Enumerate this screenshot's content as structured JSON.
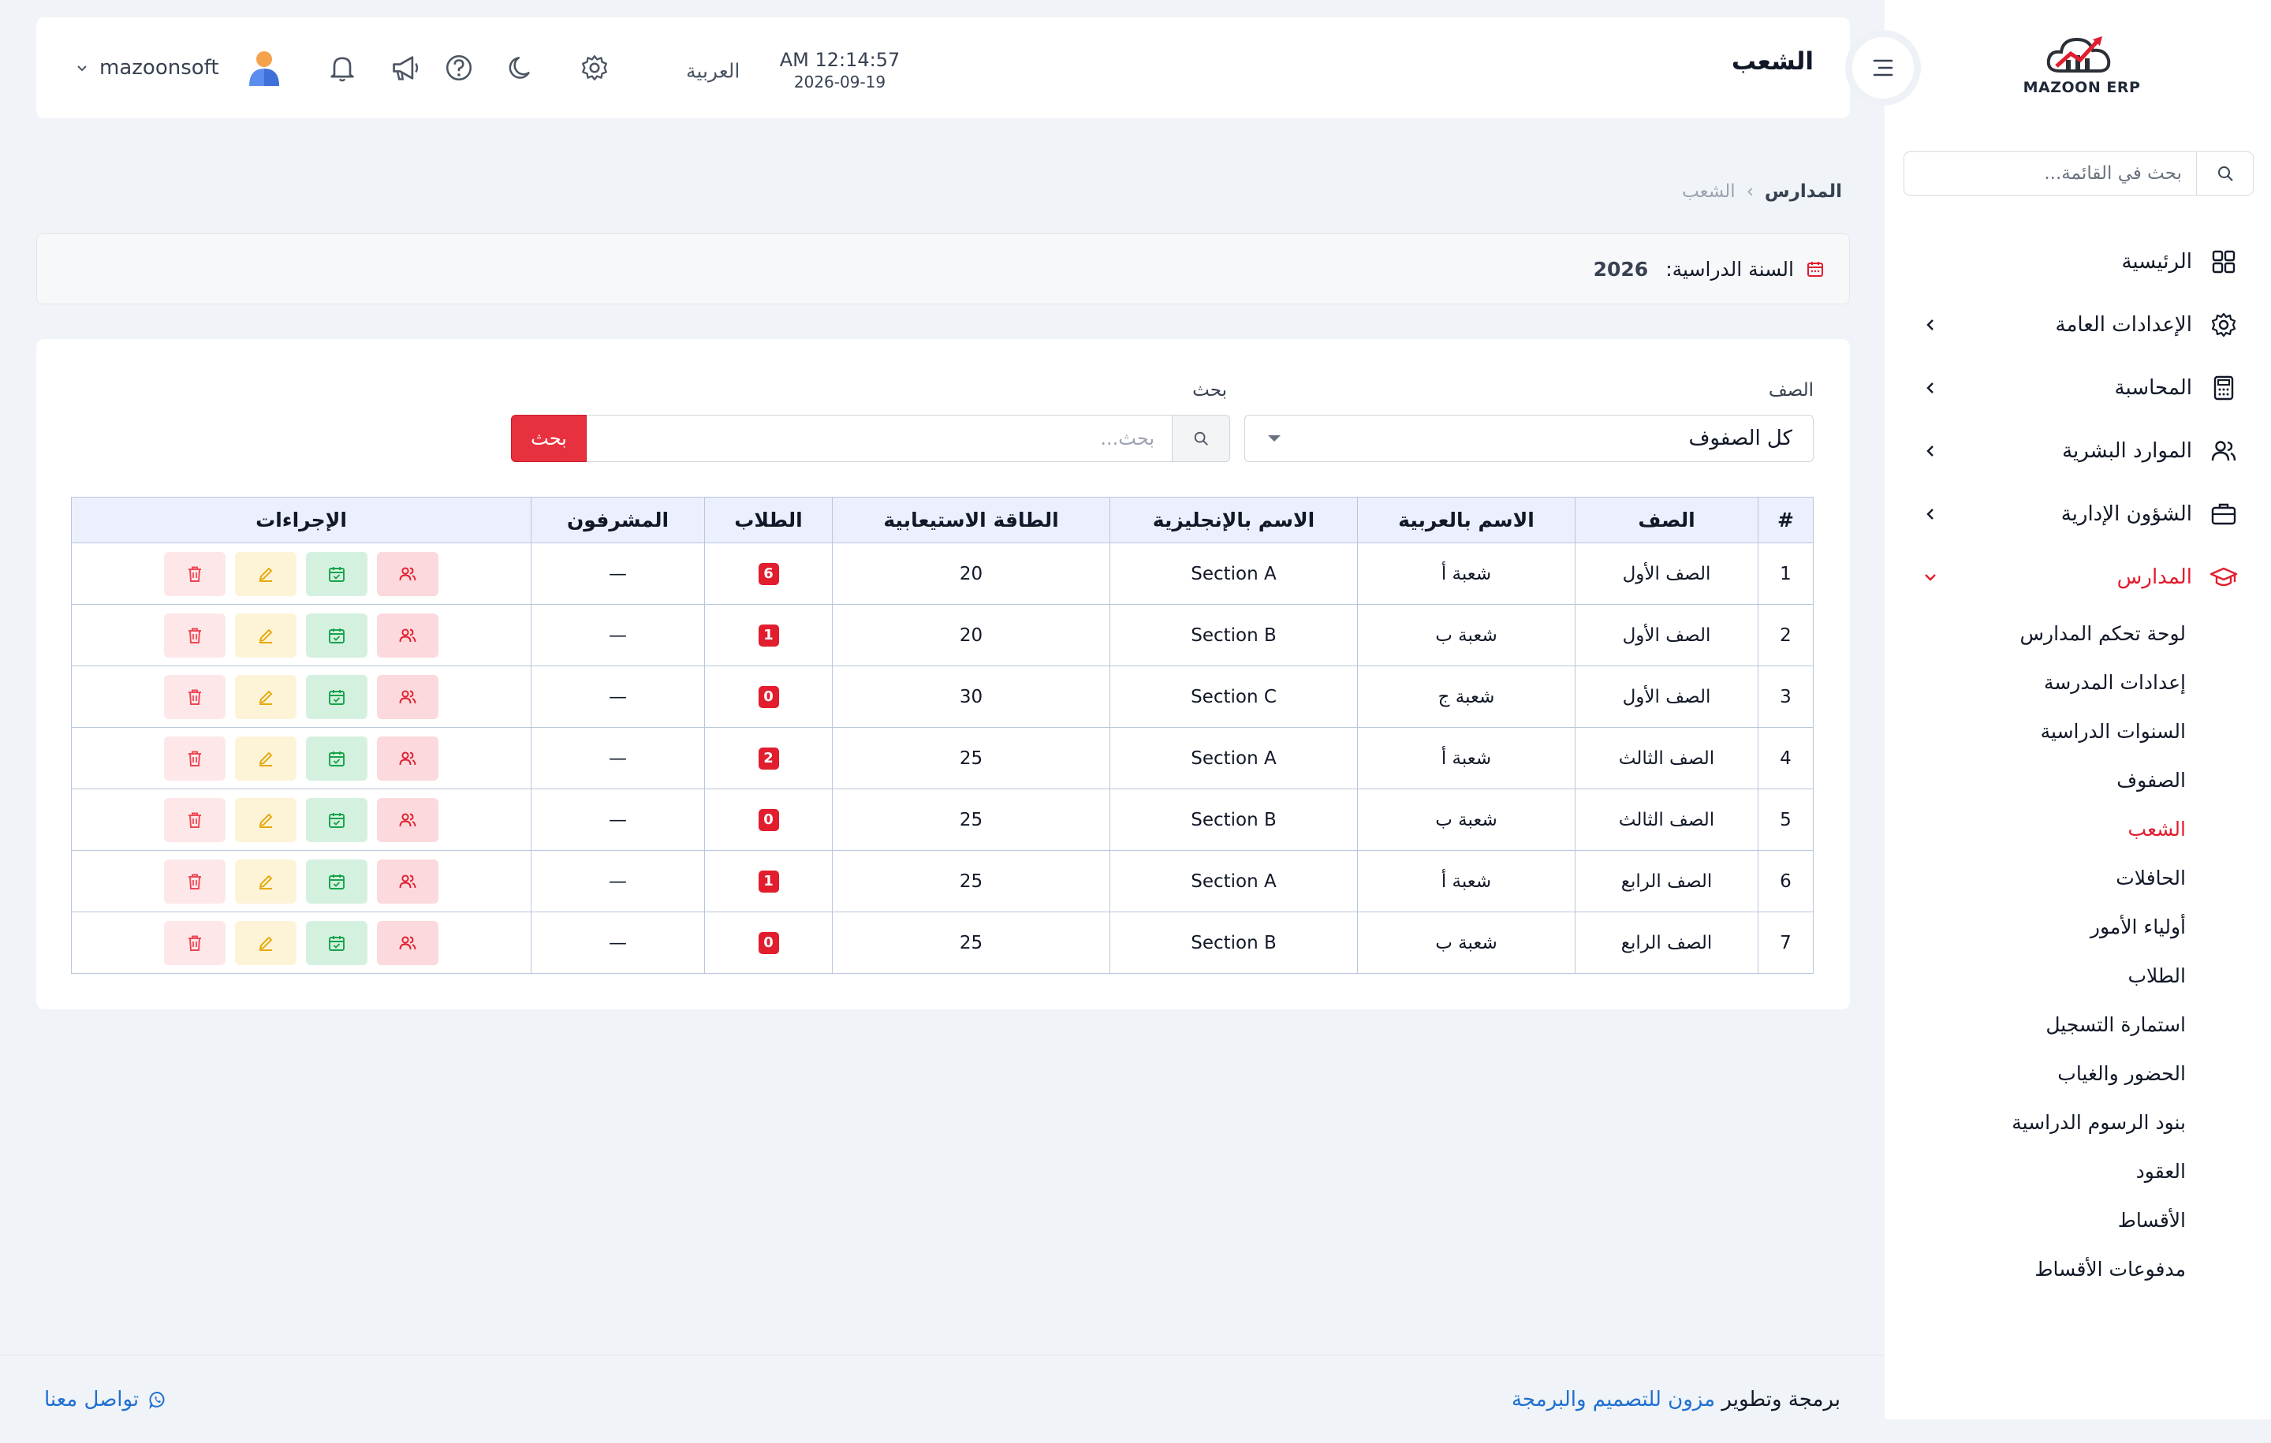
{
  "header": {
    "page_title": "الشعب",
    "time": "AM 12:14:57",
    "date": "2026-09-19",
    "language": "العربية",
    "username": "mazoonsoft"
  },
  "sidebar": {
    "logo_text": "MAZOON ERP",
    "search_placeholder": "بحث في القائمة...",
    "items": [
      {
        "label": "الرئيسية",
        "icon": "grid-icon"
      },
      {
        "label": "الإعدادات العامة",
        "icon": "gear-icon"
      },
      {
        "label": "المحاسبة",
        "icon": "calculator-icon"
      },
      {
        "label": "الموارد البشرية",
        "icon": "users-icon"
      },
      {
        "label": "الشؤون الإدارية",
        "icon": "briefcase-icon"
      },
      {
        "label": "المدارس",
        "icon": "graduation-cap-icon"
      }
    ],
    "schools_sub": [
      "لوحة تحكم المدارس",
      "إعدادات المدرسة",
      "السنوات الدراسية",
      "الصفوف",
      "الشعب",
      "الحافلات",
      "أولياء الأمور",
      "الطلاب",
      "استمارة التسجيل",
      "الحضور والغياب",
      "بنود الرسوم الدراسية",
      "العقود",
      "الأقساط",
      "مدفوعات الأقساط"
    ]
  },
  "breadcrumb": {
    "parent": "المدارس",
    "separator": "›",
    "current": "الشعب"
  },
  "academic_year": {
    "label": "السنة الدراسية:",
    "value": "2026"
  },
  "filters": {
    "grade_label": "الصف",
    "grade_value": "كل الصفوف",
    "search_label": "بحث",
    "search_placeholder": "بحث...",
    "search_button": "بحث"
  },
  "table": {
    "headers": [
      "#",
      "الصف",
      "الاسم بالعربية",
      "الاسم بالإنجليزية",
      "الطاقة الاستيعابية",
      "الطلاب",
      "المشرفون",
      "الإجراءات"
    ],
    "rows": [
      {
        "n": "1",
        "grade": "الصف الأول",
        "name_ar": "شعبة أ",
        "name_en": "Section A",
        "capacity": "20",
        "students": "6",
        "supervisors": "—"
      },
      {
        "n": "2",
        "grade": "الصف الأول",
        "name_ar": "شعبة ب",
        "name_en": "Section B",
        "capacity": "20",
        "students": "1",
        "supervisors": "—"
      },
      {
        "n": "3",
        "grade": "الصف الأول",
        "name_ar": "شعبة ج",
        "name_en": "Section C",
        "capacity": "30",
        "students": "0",
        "supervisors": "—"
      },
      {
        "n": "4",
        "grade": "الصف الثالث",
        "name_ar": "شعبة أ",
        "name_en": "Section A",
        "capacity": "25",
        "students": "2",
        "supervisors": "—"
      },
      {
        "n": "5",
        "grade": "الصف الثالث",
        "name_ar": "شعبة ب",
        "name_en": "Section B",
        "capacity": "25",
        "students": "0",
        "supervisors": "—"
      },
      {
        "n": "6",
        "grade": "الصف الرابع",
        "name_ar": "شعبة أ",
        "name_en": "Section A",
        "capacity": "25",
        "students": "1",
        "supervisors": "—"
      },
      {
        "n": "7",
        "grade": "الصف الرابع",
        "name_ar": "شعبة ب",
        "name_en": "Section B",
        "capacity": "25",
        "students": "0",
        "supervisors": "—"
      }
    ]
  },
  "footer": {
    "credit_prefix": "برمجة وتطوير",
    "credit_company": "مزون للتصميم والبرمجة",
    "contact": "تواصل معنا"
  },
  "colors": {
    "accent": "#e11d2e",
    "link": "#1f6fd1",
    "background": "#f0f3f7"
  }
}
